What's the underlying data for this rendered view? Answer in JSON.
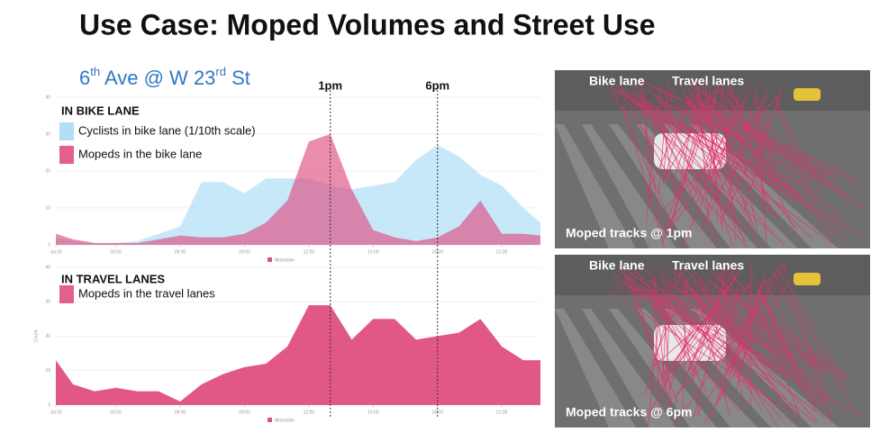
{
  "title": "Use Case: Moped Volumes and Street Use",
  "subtitle_parts": [
    {
      "text": "6"
    },
    {
      "text": "th",
      "sup": true
    },
    {
      "text": " Ave @ W 23"
    },
    {
      "text": "rd",
      "sup": true
    },
    {
      "text": " St"
    }
  ],
  "chart_data": [
    {
      "type": "area",
      "title": "IN BIKE LANE",
      "footer_legend": "Motorbike",
      "x": [
        0.2,
        1,
        2,
        3,
        4,
        5,
        6,
        7,
        8,
        9,
        10,
        11,
        12,
        13,
        14,
        15,
        16,
        17,
        18,
        19,
        20,
        21,
        22,
        22.8
      ],
      "series": [
        {
          "name": "Cyclists in bike lane (1/10th scale)",
          "color": "#a9dcf4",
          "values": [
            2,
            1,
            0.5,
            0.5,
            1,
            3,
            5,
            17,
            17,
            14,
            18,
            18,
            18,
            16,
            15,
            16,
            17,
            23,
            27,
            24,
            19,
            16,
            10,
            6
          ]
        },
        {
          "name": "Mopeds in the bike lane",
          "color": "#df4f82",
          "values": [
            3,
            1.5,
            0.5,
            0.5,
            0.5,
            1.5,
            2.5,
            2,
            2,
            3,
            6,
            12,
            28,
            30,
            15,
            4,
            2,
            1,
            2,
            5,
            12,
            3,
            3,
            2.5
          ]
        }
      ],
      "xlim": [
        0.2,
        22.8
      ],
      "xticks": [
        {
          "value": 0.2,
          "label": "Jul 20"
        },
        {
          "value": 3,
          "label": "03:00"
        },
        {
          "value": 6,
          "label": "06:00"
        },
        {
          "value": 9,
          "label": "09:00"
        },
        {
          "value": 12,
          "label": "12:00"
        },
        {
          "value": 15,
          "label": "15:00"
        },
        {
          "value": 18,
          "label": "18:00"
        },
        {
          "value": 21,
          "label": "21:00"
        }
      ],
      "ylim": [
        0,
        40
      ],
      "yticks": [
        0,
        10,
        20,
        30,
        40
      ],
      "grid": true,
      "annotations": [
        {
          "x": 13,
          "label": "1pm"
        },
        {
          "x": 18,
          "label": "6pm"
        }
      ]
    },
    {
      "type": "area",
      "title": "IN TRAVEL LANES",
      "footer_legend": "Motorbike",
      "ylabel": "Count",
      "x": [
        0.2,
        1,
        2,
        3,
        4,
        5,
        6,
        7,
        8,
        9,
        10,
        11,
        12,
        13,
        14,
        15,
        16,
        17,
        18,
        19,
        20,
        21,
        22,
        22.8
      ],
      "series": [
        {
          "name": "Mopeds in the travel lanes",
          "color": "#df4f82",
          "values": [
            13,
            6,
            4,
            5,
            4,
            4,
            1,
            6,
            9,
            11,
            12,
            17,
            29,
            29,
            19,
            25,
            25,
            19,
            20,
            21,
            25,
            17,
            13,
            13
          ]
        }
      ],
      "xlim": [
        0.2,
        22.8
      ],
      "xticks": [
        {
          "value": 0.2,
          "label": "Jul 20"
        },
        {
          "value": 3,
          "label": "03:00"
        },
        {
          "value": 6,
          "label": "06:00"
        },
        {
          "value": 9,
          "label": "09:00"
        },
        {
          "value": 12,
          "label": "12:00"
        },
        {
          "value": 15,
          "label": "15:00"
        },
        {
          "value": 18,
          "label": "18:00"
        },
        {
          "value": 21,
          "label": "21:00"
        }
      ],
      "ylim": [
        0,
        40
      ],
      "yticks": [
        0,
        10,
        20,
        30,
        40
      ],
      "grid": true,
      "annotations": [
        {
          "x": 13
        },
        {
          "x": 18
        }
      ]
    }
  ],
  "photos": [
    {
      "labels": [
        "Bike lane",
        "Travel lanes"
      ],
      "caption": "Moped tracks @ 1pm"
    },
    {
      "labels": [
        "Bike lane",
        "Travel lanes"
      ],
      "caption": "Moped tracks @ 6pm"
    }
  ]
}
